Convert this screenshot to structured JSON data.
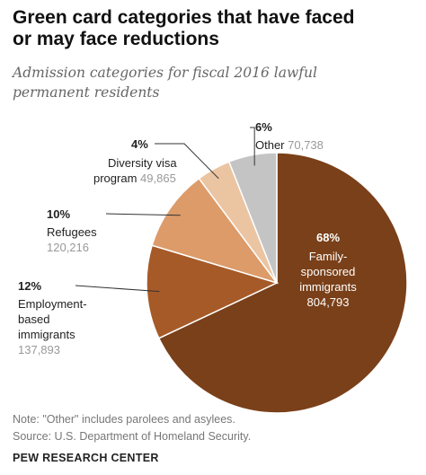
{
  "header": {
    "title_line1": "Green card categories that have faced",
    "title_line2": "or may face reductions",
    "subtitle_line1": "Admission categories for fiscal 2016 lawful",
    "subtitle_line2": "permanent residents"
  },
  "chart_data": {
    "type": "pie",
    "title": "Green card categories that have faced or may face reductions",
    "subtitle": "Admission categories for fiscal 2016 lawful permanent residents",
    "slices": [
      {
        "label_lines": [
          "Family-",
          "sponsored",
          "immigrants"
        ],
        "percent": "68%",
        "value": 804793,
        "value_text": "804,793",
        "color": "#7a4019"
      },
      {
        "label_lines": [
          "Employment-",
          "based",
          "immigrants"
        ],
        "percent": "12%",
        "value": 137893,
        "value_text": "137,893",
        "color": "#a65a28"
      },
      {
        "label_lines": [
          "Refugees"
        ],
        "percent": "10%",
        "value": 120216,
        "value_text": "120,216",
        "color": "#dc9b69"
      },
      {
        "label_lines": [
          "Diversity visa",
          "program"
        ],
        "percent": "4%",
        "value": 49865,
        "value_text": "49,865",
        "color": "#ebc4a2"
      },
      {
        "label_lines": [
          "Other"
        ],
        "percent": "6%",
        "value": 70738,
        "value_text": "70,738",
        "color": "#c4c4c4"
      }
    ]
  },
  "footer": {
    "note": "Note: \"Other\" includes parolees and asylees.",
    "source": "Source: U.S. Department of Homeland Security.",
    "brand": "PEW RESEARCH CENTER"
  }
}
